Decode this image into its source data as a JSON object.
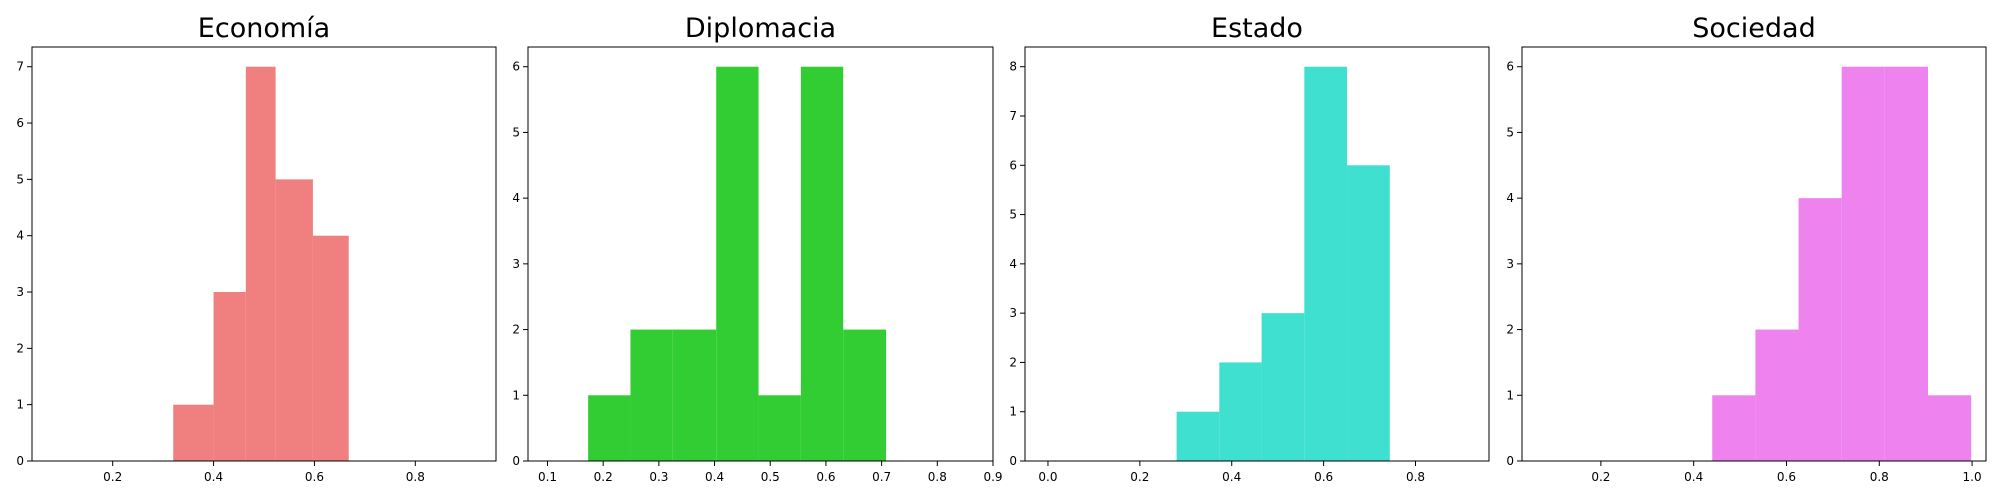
{
  "chart_data": [
    {
      "type": "bar",
      "title": "Economía",
      "color": "#f08080",
      "xlim": [
        0.04,
        0.96
      ],
      "ylim": [
        0,
        7.35
      ],
      "xticks": [
        0.2,
        0.4,
        0.6,
        0.8
      ],
      "xtick_labels": [
        "0.2",
        "0.4",
        "0.6",
        "0.8"
      ],
      "yticks": [
        0,
        1,
        2,
        3,
        4,
        5,
        6,
        7
      ],
      "ytick_labels": [
        "0",
        "1",
        "2",
        "3",
        "4",
        "5",
        "6",
        "7"
      ],
      "bin_edges": [
        0.32,
        0.4,
        0.464,
        0.523,
        0.597,
        0.668,
        0.751
      ],
      "values": [
        1,
        3,
        7,
        5,
        4,
        0
      ]
    },
    {
      "type": "bar",
      "title": "Diplomacia",
      "color": "#32cd32",
      "xlim": [
        0.065,
        0.9
      ],
      "ylim": [
        0,
        6.3
      ],
      "xticks": [
        0.1,
        0.2,
        0.3,
        0.4,
        0.5,
        0.6,
        0.7,
        0.8,
        0.9
      ],
      "xtick_labels": [
        "0.1",
        "0.2",
        "0.3",
        "0.4",
        "0.5",
        "0.6",
        "0.7",
        "0.8",
        "0.9"
      ],
      "yticks": [
        0,
        1,
        2,
        3,
        4,
        5,
        6
      ],
      "ytick_labels": [
        "0",
        "1",
        "2",
        "3",
        "4",
        "5",
        "6"
      ],
      "bin_edges": [
        0.173,
        0.249,
        0.325,
        0.403,
        0.479,
        0.555,
        0.631,
        0.708
      ],
      "values": [
        1,
        2,
        2,
        6,
        1,
        6,
        2
      ]
    },
    {
      "type": "bar",
      "title": "Estado",
      "color": "#40e0d0",
      "xlim": [
        -0.05,
        0.96
      ],
      "ylim": [
        0,
        8.4
      ],
      "xticks": [
        0.0,
        0.2,
        0.4,
        0.6,
        0.8
      ],
      "xtick_labels": [
        "0.0",
        "0.2",
        "0.4",
        "0.6",
        "0.8"
      ],
      "yticks": [
        0,
        1,
        2,
        3,
        4,
        5,
        6,
        7,
        8
      ],
      "ytick_labels": [
        "0",
        "1",
        "2",
        "3",
        "4",
        "5",
        "6",
        "7",
        "8"
      ],
      "bin_edges": [
        0.28,
        0.373,
        0.465,
        0.558,
        0.651,
        0.744
      ],
      "values": [
        1,
        2,
        3,
        8,
        6
      ]
    },
    {
      "type": "bar",
      "title": "Sociedad",
      "color": "#ee82ee",
      "xlim": [
        0.03,
        1.03
      ],
      "ylim": [
        0,
        6.3
      ],
      "xticks": [
        0.2,
        0.4,
        0.6,
        0.8,
        1.0
      ],
      "xtick_labels": [
        "0.2",
        "0.4",
        "0.6",
        "0.8",
        "1.0"
      ],
      "yticks": [
        0,
        1,
        2,
        3,
        4,
        5,
        6
      ],
      "ytick_labels": [
        "0",
        "1",
        "2",
        "3",
        "4",
        "5",
        "6"
      ],
      "bin_edges": [
        0.44,
        0.533,
        0.626,
        0.719,
        0.812,
        0.905,
        0.998
      ],
      "values": [
        1,
        2,
        4,
        6,
        6,
        1
      ]
    }
  ]
}
